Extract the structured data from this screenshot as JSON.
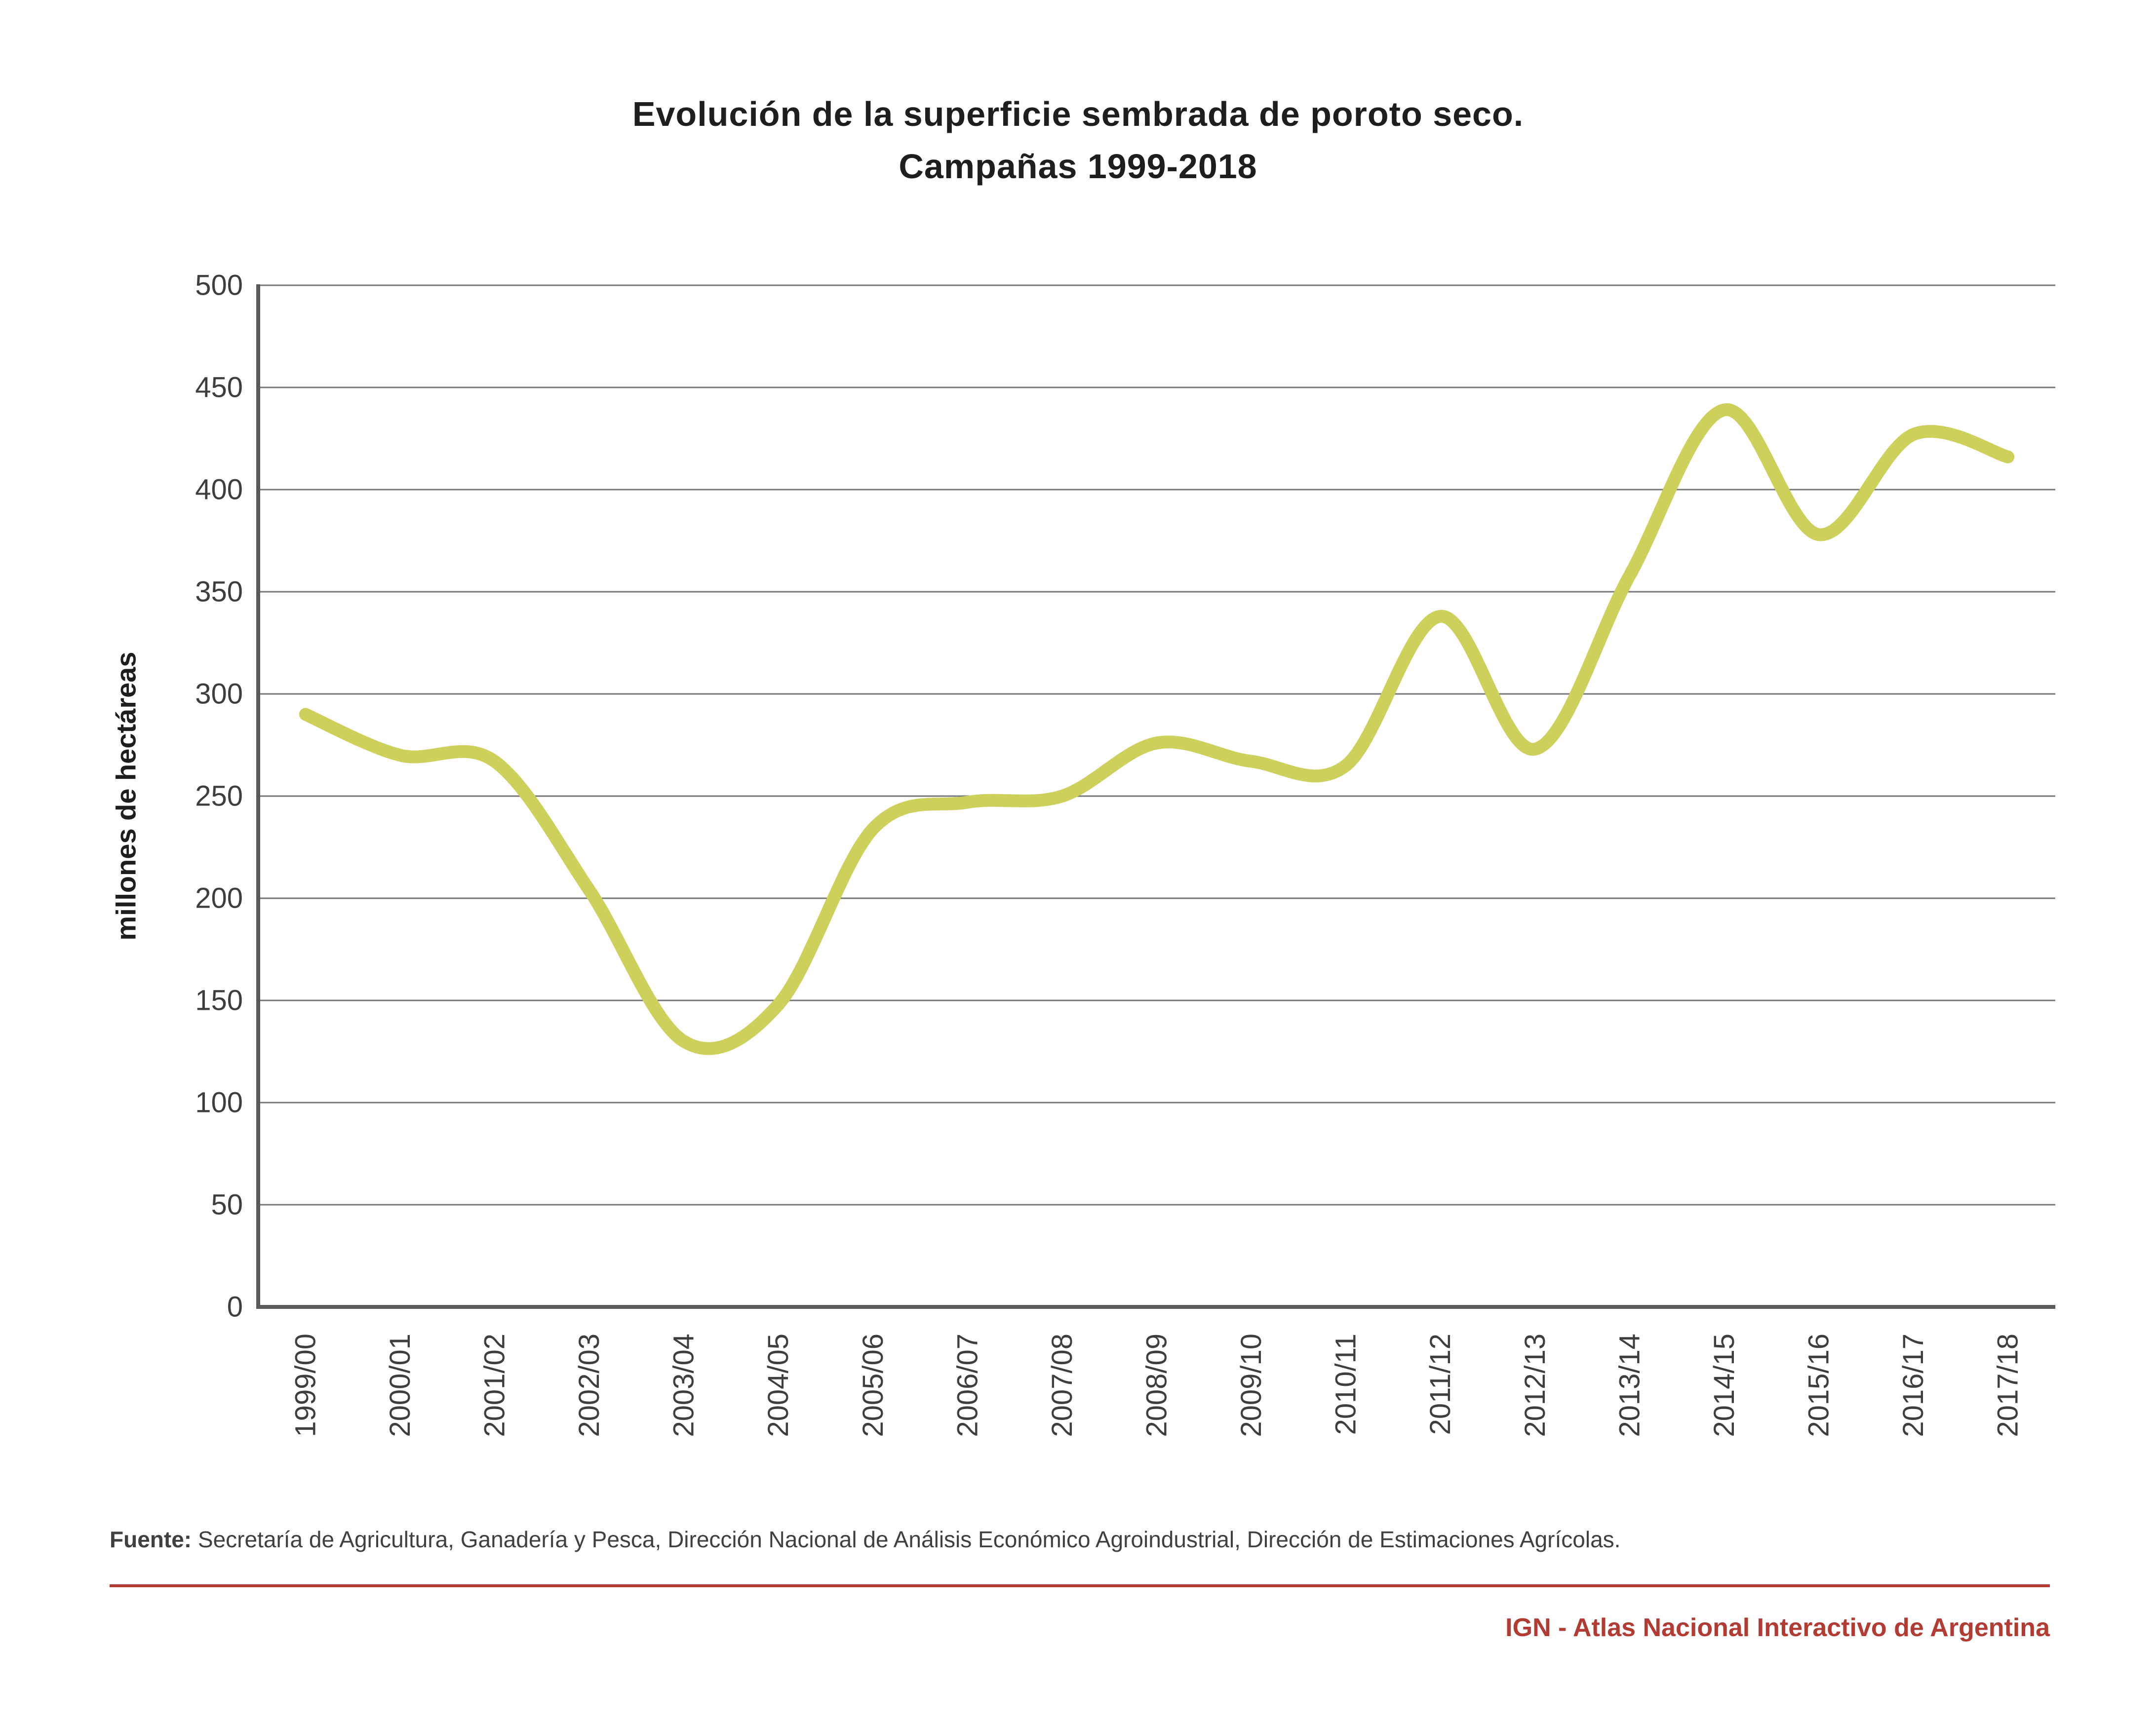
{
  "title": {
    "line1": "Evolución de la superficie sembrada de poroto seco.",
    "line2": "Campañas 1999-2018"
  },
  "chart_data": {
    "type": "line",
    "title": "Evolución de la superficie sembrada de poroto seco. Campañas 1999-2018",
    "xlabel": "",
    "ylabel": "millones de hectáreas",
    "categories": [
      "1999/00",
      "2000/01",
      "2001/02",
      "2002/03",
      "2003/04",
      "2004/05",
      "2005/06",
      "2006/07",
      "2007/08",
      "2008/09",
      "2009/10",
      "2010/11",
      "2011/12",
      "2012/13",
      "2013/14",
      "2014/15",
      "2015/16",
      "2016/17",
      "2017/18"
    ],
    "values": [
      290,
      270,
      267,
      204,
      130,
      148,
      234,
      247,
      250,
      276,
      267,
      265,
      338,
      273,
      358,
      439,
      378,
      427,
      416
    ],
    "ylim": [
      0,
      500
    ],
    "yticks": [
      0,
      50,
      100,
      150,
      200,
      250,
      300,
      350,
      400,
      450,
      500
    ],
    "grid": true,
    "legend": false,
    "line_color": "#cdd15c"
  },
  "footer": {
    "source_label": "Fuente:",
    "source_text": "Secretaría de Agricultura, Ganadería y Pesca, Dirección Nacional de Análisis Económico Agroindustrial, Dirección de Estimaciones Agrícolas.",
    "attribution": "IGN - Atlas Nacional Interactivo de Argentina"
  },
  "colors": {
    "line": "#cdd15c",
    "accent_red": "#b23b33",
    "grid": "#767779",
    "axis": "#58595b",
    "tick_text": "#3d3e40",
    "title_text": "#1f1d1e"
  }
}
